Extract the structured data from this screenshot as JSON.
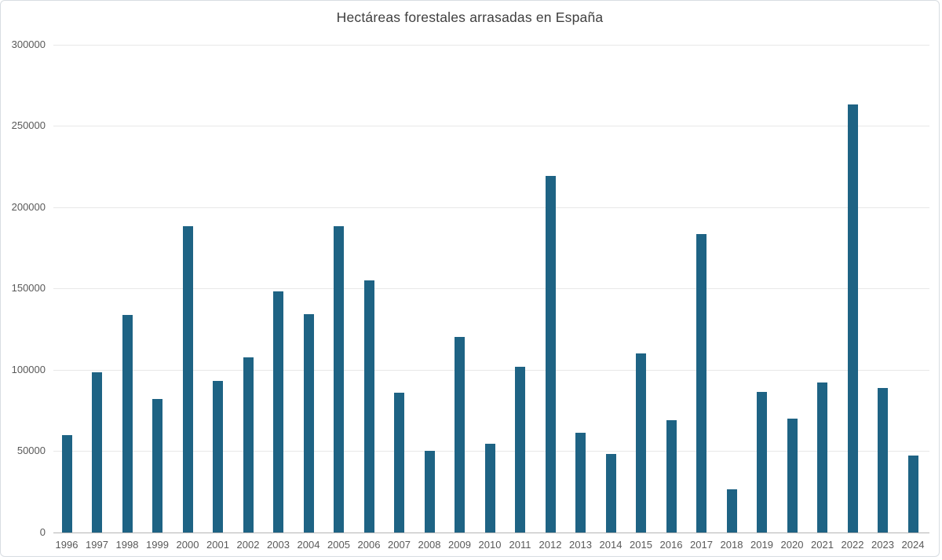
{
  "chart_data": {
    "type": "bar",
    "title": "Hectáreas forestales arrasadas en España",
    "xlabel": "",
    "ylabel": "",
    "categories": [
      "1996",
      "1997",
      "1998",
      "1999",
      "2000",
      "2001",
      "2002",
      "2003",
      "2004",
      "2005",
      "2006",
      "2007",
      "2008",
      "2009",
      "2010",
      "2011",
      "2012",
      "2013",
      "2014",
      "2015",
      "2016",
      "2017",
      "2018",
      "2019",
      "2020",
      "2021",
      "2022",
      "2023",
      "2024"
    ],
    "values": [
      60000,
      98500,
      133500,
      82000,
      188500,
      93000,
      107500,
      148000,
      134000,
      188500,
      155000,
      86000,
      50300,
      120000,
      54500,
      102000,
      219000,
      61500,
      48500,
      110000,
      69000,
      183500,
      26500,
      86500,
      70000,
      92000,
      263000,
      89000,
      47500
    ],
    "ylim": [
      0,
      300000
    ],
    "yticks": [
      0,
      50000,
      100000,
      150000,
      200000,
      250000,
      300000
    ],
    "grid": true,
    "legend": false
  },
  "colors": {
    "bar": "#1e6384",
    "grid": "#e8e8e8",
    "axis": "#b5b5b5",
    "tick_label": "#595959",
    "title": "#3f3f3f",
    "card_border": "#d8dde2",
    "background": "#ffffff"
  }
}
